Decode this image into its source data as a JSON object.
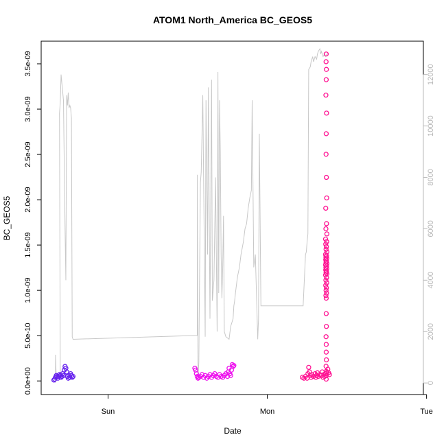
{
  "chart_data": {
    "type": "scatter",
    "title": "ATOM1 North_America BC_GEOS5",
    "xlabel": "Date",
    "ylabel": "BC_GEOS5",
    "x_ticks": [
      "Sun",
      "Mon",
      "Tue"
    ],
    "y_ticks": [
      "0.0e+00",
      "5.0e-10",
      "1.0e-09",
      "1.5e-09",
      "2.0e-09",
      "2.5e-09",
      "3.0e-09",
      "3.5e-09"
    ],
    "y_tick_values": [
      0,
      5e-10,
      1e-09,
      1.5e-09,
      2e-09,
      2.5e-09,
      3e-09,
      3.5e-09
    ],
    "y2_ticks": [
      "0",
      "2000",
      "4000",
      "6000",
      "8000",
      "10000",
      "12000"
    ],
    "y2_tick_values": [
      0,
      2000,
      4000,
      6000,
      8000,
      10000,
      12000
    ],
    "xlim_days_from_sun": [
      -0.42,
      1.98
    ],
    "ylim": [
      -1.5e-10,
      3.75e-09
    ],
    "y2lim": [
      -450,
      13300
    ],
    "grid": false,
    "legend": "none",
    "secondary_series": {
      "name": "",
      "axis": "right",
      "color": "#c8c8c8",
      "type": "line",
      "x": [
        -0.33,
        -0.33,
        -0.325,
        -0.3,
        -0.305,
        -0.3,
        -0.295,
        -0.28,
        -0.27,
        -0.265,
        -0.26,
        -0.255,
        -0.25,
        -0.245,
        -0.24,
        -0.235,
        -0.23,
        -0.225,
        -0.22,
        0.56,
        0.56,
        0.565,
        0.57,
        0.58,
        0.585,
        0.595,
        0.61,
        0.615,
        0.625,
        0.63,
        0.64,
        0.65,
        0.655,
        0.665,
        0.675,
        0.685,
        0.69,
        0.695,
        0.7,
        0.705,
        0.71,
        0.715,
        0.72,
        0.725,
        0.73,
        0.74,
        0.76,
        0.77,
        0.775,
        0.78,
        0.785,
        0.79,
        0.795,
        0.8,
        0.81,
        0.815,
        0.825,
        0.835,
        0.85,
        0.86,
        0.87,
        0.875,
        0.88,
        0.885,
        0.89,
        0.9,
        0.905,
        0.915,
        0.925,
        0.94,
        0.945,
        0.95,
        0.96,
        1.225,
        1.24,
        1.245,
        1.25,
        1.255,
        1.26,
        1.27,
        1.275,
        1.28,
        1.285,
        1.29,
        1.3,
        1.31,
        1.315,
        1.32,
        1.33,
        1.335,
        1.34,
        1.345,
        1.35,
        1.36,
        1.365,
        1.375,
        1.38
      ],
      "y": [
        0,
        1100,
        150,
        200,
        10500,
        10900,
        12000,
        11000,
        6000,
        4000,
        11200,
        10800,
        11300,
        10700,
        10800,
        10700,
        10300,
        1800,
        1700,
        1850,
        8100,
        200,
        800,
        7800,
        8200,
        11200,
        1800,
        11000,
        5000,
        11500,
        2500,
        11800,
        3200,
        4000,
        8000,
        2000,
        12100,
        3500,
        11000,
        9000,
        5000,
        3300,
        4500,
        6500,
        2000,
        1800,
        1700,
        2200,
        2300,
        2400,
        2500,
        3000,
        3200,
        3500,
        4000,
        4200,
        4500,
        5000,
        5500,
        6000,
        6200,
        6500,
        6800,
        7000,
        7200,
        7500,
        11000,
        4500,
        5000,
        1700,
        2500,
        9700,
        3000,
        3000,
        5000,
        5100,
        5500,
        5800,
        12200,
        12300,
        12500,
        12600,
        12700,
        12500,
        12700,
        12600,
        12800,
        12900,
        13000,
        12800,
        12900,
        12800,
        12700,
        12800,
        12700,
        12800,
        12800
      ]
    },
    "series": [
      {
        "name": "",
        "color": "#6622ee",
        "marker": "circle",
        "x": [
          -0.34,
          -0.335,
          -0.33,
          -0.325,
          -0.32,
          -0.315,
          -0.31,
          -0.305,
          -0.3,
          -0.295,
          -0.29,
          -0.285,
          -0.28,
          -0.275,
          -0.27,
          -0.265,
          -0.26,
          -0.255,
          -0.25,
          -0.245,
          -0.24,
          -0.235,
          -0.23,
          -0.225,
          -0.22
        ],
        "y": [
          1e-11,
          2e-11,
          4e-11,
          6e-11,
          5e-11,
          3e-11,
          5e-11,
          7e-11,
          6e-11,
          4e-11,
          5e-11,
          8e-11,
          6e-11,
          1.2e-10,
          1.6e-10,
          1.4e-10,
          1e-10,
          5e-11,
          3e-11,
          6e-11,
          4e-11,
          8e-11,
          6e-11,
          4e-11,
          5e-11
        ]
      },
      {
        "name": "",
        "color": "#ee11ee",
        "marker": "circle",
        "x": [
          0.545,
          0.55,
          0.555,
          0.56,
          0.565,
          0.57,
          0.58,
          0.59,
          0.6,
          0.61,
          0.62,
          0.63,
          0.64,
          0.65,
          0.66,
          0.67,
          0.68,
          0.69,
          0.7,
          0.71,
          0.72,
          0.73,
          0.74,
          0.75,
          0.755,
          0.76,
          0.765,
          0.77,
          0.775,
          0.78,
          0.785,
          0.79
        ],
        "y": [
          1.4e-10,
          1.2e-10,
          8e-11,
          5e-11,
          3e-11,
          4e-11,
          5e-11,
          7e-11,
          4e-11,
          6e-11,
          3e-11,
          5e-11,
          7e-11,
          4e-11,
          6e-11,
          8e-11,
          5e-11,
          4e-11,
          7e-11,
          5e-11,
          4e-11,
          6e-11,
          8e-11,
          5e-11,
          1e-10,
          1.4e-10,
          8e-11,
          6e-11,
          1.2e-10,
          1.8e-10,
          1.6e-10,
          1.7e-10
        ]
      },
      {
        "name": "",
        "color": "#ff1493",
        "marker": "circle",
        "x": [
          1.22,
          1.23,
          1.24,
          1.25,
          1.255,
          1.26,
          1.265,
          1.27,
          1.275,
          1.28,
          1.29,
          1.3,
          1.305,
          1.31,
          1.315,
          1.32,
          1.33,
          1.34,
          1.345,
          1.35,
          1.355,
          1.36,
          1.365,
          1.37,
          1.375,
          1.38,
          1.385,
          1.39
        ],
        "y": [
          4e-11,
          3e-11,
          5e-11,
          3e-11,
          8e-11,
          1.5e-10,
          1e-10,
          6e-11,
          4e-11,
          7e-11,
          5e-11,
          8e-11,
          4e-11,
          6e-11,
          9e-11,
          5e-11,
          7e-11,
          6e-11,
          1e-10,
          4e-11,
          7e-11,
          5e-11,
          8e-11,
          6e-11,
          9e-11,
          1.3e-10,
          9e-11,
          7e-11
        ]
      },
      {
        "name": "",
        "color": "#ff1493",
        "marker": "circle",
        "axis": "right",
        "x": [
          1.37,
          1.37,
          1.37,
          1.37,
          1.37,
          1.37,
          1.37,
          1.37,
          1.37,
          1.37,
          1.37,
          1.37,
          1.37,
          1.37,
          1.37,
          1.37,
          1.37,
          1.37,
          1.37,
          1.37,
          1.37,
          1.37,
          1.37,
          1.37,
          1.37,
          1.37,
          1.37,
          1.37,
          1.37,
          1.37,
          1.37,
          1.37,
          1.37,
          1.37,
          1.37,
          1.37,
          1.37,
          1.37,
          1.37,
          1.37,
          1.37,
          1.37,
          1.37,
          1.37,
          1.37,
          1.37,
          1.37,
          1.37,
          1.37,
          1.37,
          1.37,
          1.37,
          1.37,
          1.37,
          1.37,
          1.37
        ],
        "y": [
          12800,
          12500,
          12200,
          11800,
          11200,
          10500,
          9700,
          8900,
          8000,
          7200,
          6800,
          6200,
          6000,
          5800,
          5600,
          5500,
          5400,
          5300,
          5200,
          5100,
          5000,
          4950,
          4900,
          4850,
          4800,
          4750,
          4700,
          4650,
          4600,
          4550,
          4500,
          4450,
          4400,
          4350,
          4300,
          4250,
          4200,
          4100,
          4000,
          3900,
          3800,
          3700,
          3600,
          3500,
          3400,
          3300,
          2700,
          2200,
          1800,
          1500,
          1200,
          900,
          650,
          450,
          300,
          150
        ],
        "x_offsets": [
          0,
          -0.001,
          0.001,
          0,
          -0.002,
          0.002,
          0,
          -0.001,
          0.001,
          0.003,
          -0.003,
          0.002,
          -0.002,
          0.004,
          -0.004,
          0.003,
          -0.003,
          0.001,
          -0.001,
          0.004,
          -0.004,
          0.002,
          -0.002,
          0.003,
          -0.003,
          0.001,
          -0.001,
          0.004,
          -0.004,
          0.002,
          -0.002,
          0.003,
          -0.003,
          0.001,
          -0.001,
          0.004,
          -0.004,
          0.002,
          -0.002,
          0.003,
          -0.003,
          0.001,
          -0.001,
          0.002,
          -0.002,
          0,
          0,
          0.001,
          -0.001,
          0,
          0,
          0.001,
          -0.001,
          0,
          0,
          0
        ]
      }
    ]
  }
}
